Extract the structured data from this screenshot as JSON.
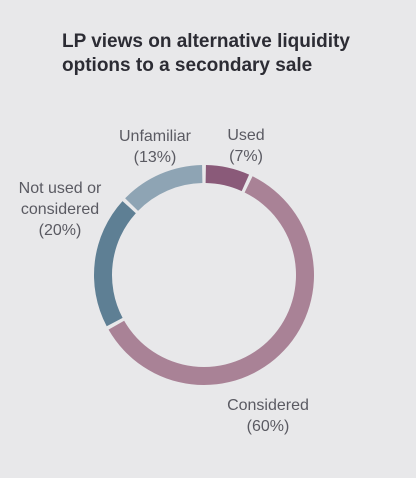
{
  "chart_data": {
    "type": "pie",
    "title_lines": [
      "LP views on alternative liquidity",
      "options to a secondary sale"
    ],
    "donut": true,
    "slices": [
      {
        "label_lines": [
          "Used",
          "(7%)"
        ],
        "value": 7,
        "color": "#8a5a79"
      },
      {
        "label_lines": [
          "Considered",
          "(60%)"
        ],
        "value": 60,
        "color": "#a98296"
      },
      {
        "label_lines": [
          "Not used or",
          "considered",
          "(20%)"
        ],
        "value": 20,
        "color": "#5e7f94"
      },
      {
        "label_lines": [
          "Unfamiliar",
          "(13%)"
        ],
        "value": 13,
        "color": "#8ea4b4"
      }
    ]
  }
}
